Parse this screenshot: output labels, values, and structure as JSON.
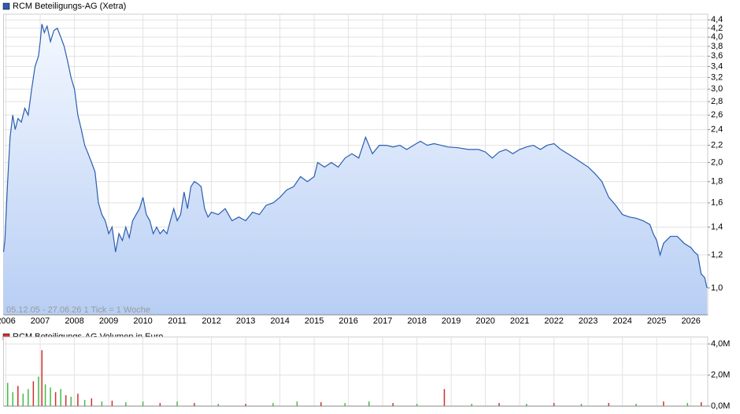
{
  "chart_data": [
    {
      "type": "line",
      "title": "RCM Beteiligungs-AG (Xetra)",
      "annotation": "05.12.05 - 27.06.26    1 Tick = 1 Woche",
      "log_scale": true,
      "grid": true,
      "color": "#2a5db0",
      "xlim": [
        2005.93,
        2026.49
      ],
      "xticks": [
        2006,
        2007,
        2008,
        2009,
        2010,
        2011,
        2012,
        2013,
        2014,
        2015,
        2016,
        2017,
        2018,
        2019,
        2020,
        2021,
        2022,
        2023,
        2024,
        2025,
        2026
      ],
      "ylim": [
        0.862,
        4.54
      ],
      "yticks": [
        {
          "value": 1.0,
          "label": "1,0"
        },
        {
          "value": 1.2,
          "label": "1,2"
        },
        {
          "value": 1.4,
          "label": "1,4"
        },
        {
          "value": 1.6,
          "label": "1,6"
        },
        {
          "value": 1.8,
          "label": "1,8"
        },
        {
          "value": 2.0,
          "label": "2,0"
        },
        {
          "value": 2.2,
          "label": "2,2"
        },
        {
          "value": 2.4,
          "label": "2,4"
        },
        {
          "value": 2.6,
          "label": "2,6"
        },
        {
          "value": 2.8,
          "label": "2,8"
        },
        {
          "value": 3.0,
          "label": "3,0"
        },
        {
          "value": 3.2,
          "label": "3,2"
        },
        {
          "value": 3.4,
          "label": "3,4"
        },
        {
          "value": 3.6,
          "label": "3,6"
        },
        {
          "value": 3.8,
          "label": "3,8"
        },
        {
          "value": 4.0,
          "label": "4,0"
        },
        {
          "value": 4.2,
          "label": "4,2"
        },
        {
          "value": 4.4,
          "label": "4,4"
        }
      ],
      "x": [
        2005.93,
        2005.97,
        2006.05,
        2006.12,
        2006.2,
        2006.27,
        2006.35,
        2006.45,
        2006.55,
        2006.65,
        2006.75,
        2006.85,
        2006.95,
        2007.0,
        2007.05,
        2007.12,
        2007.2,
        2007.3,
        2007.4,
        2007.5,
        2007.6,
        2007.7,
        2007.8,
        2007.9,
        2008.0,
        2008.1,
        2008.2,
        2008.3,
        2008.4,
        2008.5,
        2008.6,
        2008.7,
        2008.8,
        2008.9,
        2009.0,
        2009.1,
        2009.2,
        2009.3,
        2009.4,
        2009.5,
        2009.6,
        2009.7,
        2009.8,
        2009.9,
        2010.0,
        2010.1,
        2010.2,
        2010.3,
        2010.4,
        2010.5,
        2010.6,
        2010.7,
        2010.8,
        2010.9,
        2011.0,
        2011.1,
        2011.2,
        2011.3,
        2011.4,
        2011.5,
        2011.6,
        2011.7,
        2011.8,
        2011.9,
        2012.0,
        2012.2,
        2012.4,
        2012.6,
        2012.8,
        2013.0,
        2013.2,
        2013.4,
        2013.6,
        2013.8,
        2014.0,
        2014.2,
        2014.4,
        2014.6,
        2014.8,
        2015.0,
        2015.1,
        2015.3,
        2015.5,
        2015.7,
        2015.9,
        2016.1,
        2016.3,
        2016.5,
        2016.7,
        2016.9,
        2017.1,
        2017.3,
        2017.5,
        2017.7,
        2017.9,
        2018.1,
        2018.3,
        2018.5,
        2018.7,
        2018.9,
        2019.2,
        2019.5,
        2019.8,
        2020.0,
        2020.2,
        2020.4,
        2020.6,
        2020.8,
        2021.0,
        2021.2,
        2021.4,
        2021.6,
        2021.8,
        2022.0,
        2022.2,
        2022.4,
        2022.6,
        2022.8,
        2023.0,
        2023.2,
        2023.4,
        2023.6,
        2023.8,
        2024.0,
        2024.2,
        2024.4,
        2024.6,
        2024.8,
        2024.9,
        2025.0,
        2025.1,
        2025.2,
        2025.4,
        2025.6,
        2025.8,
        2026.0,
        2026.1,
        2026.2,
        2026.3,
        2026.4,
        2026.47
      ],
      "values": [
        1.22,
        1.3,
        1.8,
        2.3,
        2.6,
        2.4,
        2.55,
        2.5,
        2.7,
        2.6,
        3.0,
        3.4,
        3.6,
        3.9,
        4.3,
        4.1,
        4.25,
        3.9,
        4.15,
        4.2,
        4.0,
        3.8,
        3.5,
        3.2,
        3.0,
        2.6,
        2.4,
        2.2,
        2.1,
        2.0,
        1.9,
        1.6,
        1.5,
        1.45,
        1.35,
        1.4,
        1.22,
        1.35,
        1.3,
        1.4,
        1.32,
        1.45,
        1.5,
        1.55,
        1.65,
        1.5,
        1.45,
        1.35,
        1.4,
        1.35,
        1.38,
        1.35,
        1.45,
        1.55,
        1.45,
        1.5,
        1.7,
        1.55,
        1.75,
        1.8,
        1.78,
        1.75,
        1.55,
        1.48,
        1.52,
        1.5,
        1.55,
        1.45,
        1.48,
        1.45,
        1.52,
        1.5,
        1.58,
        1.6,
        1.65,
        1.72,
        1.75,
        1.85,
        1.8,
        1.85,
        2.0,
        1.95,
        2.0,
        1.95,
        2.05,
        2.1,
        2.05,
        2.3,
        2.1,
        2.2,
        2.2,
        2.18,
        2.2,
        2.15,
        2.2,
        2.25,
        2.2,
        2.22,
        2.2,
        2.18,
        2.17,
        2.15,
        2.15,
        2.12,
        2.05,
        2.12,
        2.15,
        2.1,
        2.15,
        2.18,
        2.2,
        2.15,
        2.2,
        2.22,
        2.15,
        2.1,
        2.05,
        2.0,
        1.95,
        1.88,
        1.8,
        1.65,
        1.58,
        1.5,
        1.48,
        1.47,
        1.45,
        1.42,
        1.35,
        1.3,
        1.2,
        1.28,
        1.33,
        1.33,
        1.28,
        1.25,
        1.22,
        1.2,
        1.08,
        1.06,
        1.0
      ]
    },
    {
      "type": "bar",
      "title": "RCM Beteiligungs-AG Volumen in Euro",
      "grid": true,
      "legend_color": "#d03030",
      "xlim": [
        2005.93,
        2026.49
      ],
      "ylim": [
        0,
        4.45
      ],
      "yticks": [
        {
          "value": 0,
          "label": "0,0M"
        },
        {
          "value": 2,
          "label": "2,0M"
        },
        {
          "value": 4,
          "label": "4,0M"
        }
      ],
      "x": [
        2006.05,
        2006.2,
        2006.35,
        2006.5,
        2006.65,
        2006.8,
        2006.95,
        2007.05,
        2007.15,
        2007.3,
        2007.45,
        2007.6,
        2007.75,
        2007.9,
        2008.1,
        2008.3,
        2008.5,
        2008.8,
        2009.1,
        2009.5,
        2010.0,
        2010.5,
        2011.0,
        2011.5,
        2012.2,
        2013.0,
        2013.8,
        2014.5,
        2015.2,
        2015.9,
        2016.6,
        2017.3,
        2018.0,
        2018.8,
        2019.6,
        2020.4,
        2021.2,
        2022.0,
        2022.8,
        2023.6,
        2024.4,
        2025.2,
        2025.9,
        2026.3
      ],
      "values": [
        1.5,
        0.9,
        1.3,
        0.8,
        1.1,
        1.6,
        1.9,
        3.6,
        1.4,
        1.2,
        0.9,
        1.1,
        0.7,
        0.6,
        0.8,
        0.4,
        0.5,
        0.3,
        0.35,
        0.25,
        0.3,
        0.2,
        0.3,
        0.2,
        0.15,
        0.15,
        0.2,
        0.3,
        0.25,
        0.2,
        0.3,
        0.2,
        0.15,
        1.1,
        0.15,
        0.2,
        0.15,
        0.2,
        0.15,
        0.2,
        0.15,
        0.3,
        0.2,
        0.25
      ],
      "colors": [
        "#44bb44",
        "#44bb44",
        "#d03030",
        "#44bb44",
        "#44bb44",
        "#d03030",
        "#44bb44",
        "#d03030",
        "#44bb44",
        "#44bb44",
        "#d03030",
        "#44bb44",
        "#d03030",
        "#44bb44",
        "#d03030",
        "#44bb44",
        "#d03030",
        "#44bb44",
        "#d03030",
        "#44bb44",
        "#44bb44",
        "#d03030",
        "#44bb44",
        "#d03030",
        "#44bb44",
        "#d03030",
        "#44bb44",
        "#44bb44",
        "#d03030",
        "#44bb44",
        "#44bb44",
        "#d03030",
        "#44bb44",
        "#d03030",
        "#44bb44",
        "#d03030",
        "#44bb44",
        "#d03030",
        "#44bb44",
        "#d03030",
        "#44bb44",
        "#d03030",
        "#44bb44",
        "#d03030"
      ]
    }
  ]
}
